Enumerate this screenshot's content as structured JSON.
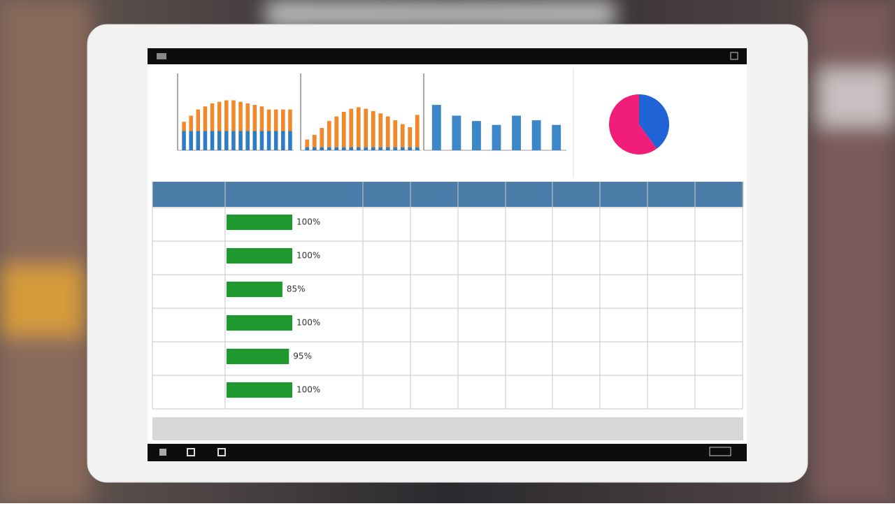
{
  "dashboard": {
    "charts": [
      {
        "type": "bar",
        "ylim": [
          0,
          100
        ],
        "series": [
          {
            "color": "#2f7cc2",
            "values": [
              25,
              25,
              25,
              25,
              25,
              25,
              25,
              25,
              25,
              25,
              25,
              25,
              25,
              25,
              25,
              25
            ]
          },
          {
            "color": "#f0892a",
            "values": [
              12,
              20,
              28,
              32,
              36,
              38,
              40,
              40,
              38,
              36,
              34,
              32,
              28,
              28,
              28,
              28
            ]
          }
        ]
      },
      {
        "type": "bar",
        "ylim": [
          0,
          100
        ],
        "series": [
          {
            "color": "#2f7cc2",
            "values": [
              4,
              4,
              4,
              4,
              4,
              4,
              4,
              4,
              4,
              4,
              4,
              4,
              4,
              4,
              4,
              4
            ]
          },
          {
            "color": "#f0892a",
            "values": [
              10,
              16,
              25,
              34,
              40,
              46,
              50,
              52,
              50,
              47,
              44,
              40,
              35,
              30,
              26,
              42
            ]
          }
        ]
      },
      {
        "type": "bar",
        "ylim": [
          0,
          100
        ],
        "series": [
          {
            "color": "#3d87c8",
            "values": [
              59,
              45,
              38,
              33,
              45,
              39,
              33
            ]
          }
        ]
      }
    ],
    "pie": {
      "type": "pie",
      "values": [
        40,
        60
      ],
      "colors": [
        "#1f63d6",
        "#f01e78"
      ]
    },
    "table": {
      "bar_color": "#1f9a2e",
      "xlim": [
        0,
        100
      ],
      "values": [
        100,
        100,
        85,
        100,
        95,
        100
      ],
      "value_labels": [
        "100%",
        "100%",
        "85%",
        "100%",
        "95%",
        "100%"
      ]
    }
  }
}
